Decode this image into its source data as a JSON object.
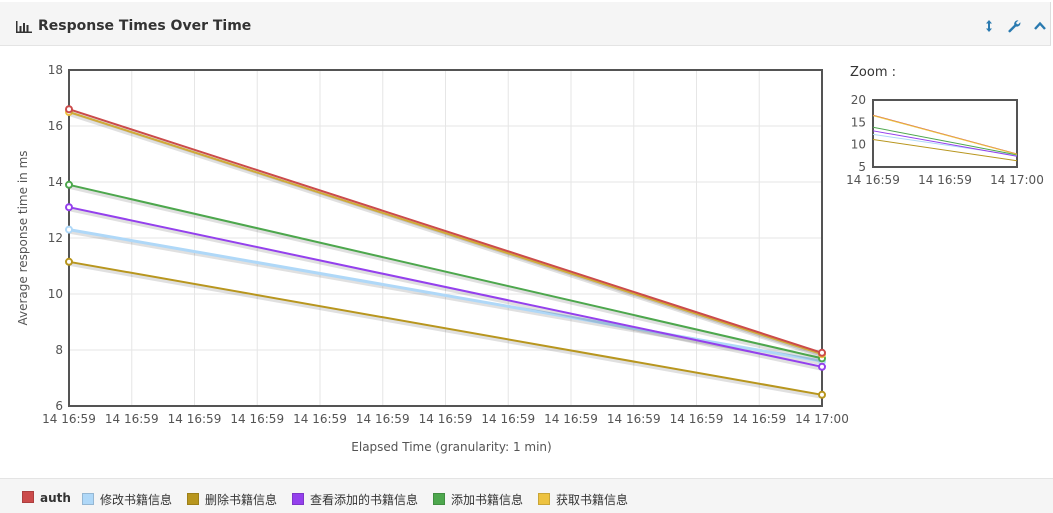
{
  "panel": {
    "title": "Response Times Over Time",
    "icons": [
      "bar-chart-icon",
      "resize-icon",
      "wrench-icon",
      "collapse-icon"
    ]
  },
  "zoom": {
    "title": "Zoom :"
  },
  "colors": {
    "auth": "#cb4b4b",
    "modify": "#afd8f8",
    "delete": "#b8961e",
    "view_added": "#9440ed",
    "add": "#4da74d",
    "get": "#edc240",
    "accent": "#2a7ab0"
  },
  "chart_data": [
    {
      "type": "line",
      "title": "",
      "xlabel": "Elapsed Time (granularity: 1 min)",
      "ylabel": "Average response time in ms",
      "x_ticks": [
        "14 16:59",
        "14 16:59",
        "14 16:59",
        "14 16:59",
        "14 16:59",
        "14 16:59",
        "14 16:59",
        "14 16:59",
        "14 16:59",
        "14 16:59",
        "14 16:59",
        "14 16:59",
        "14 17:00"
      ],
      "y_ticks": [
        "6",
        "8",
        "10",
        "12",
        "14",
        "16",
        "18"
      ],
      "ylim": [
        6,
        18
      ],
      "x": [
        "14 16:59",
        "14 17:00"
      ],
      "grid": true,
      "legend_position": "bottom",
      "series": [
        {
          "name": "auth",
          "color": "#cb4b4b",
          "values": [
            16.6,
            7.9
          ]
        },
        {
          "name": "修改书籍信息",
          "color": "#afd8f8",
          "values": [
            12.3,
            7.6
          ]
        },
        {
          "name": "删除书籍信息",
          "color": "#b8961e",
          "values": [
            11.15,
            6.4
          ]
        },
        {
          "name": "查看添加的书籍信息",
          "color": "#9440ed",
          "values": [
            13.1,
            7.4
          ]
        },
        {
          "name": "添加书籍信息",
          "color": "#4da74d",
          "values": [
            13.9,
            7.7
          ]
        },
        {
          "name": "获取书籍信息",
          "color": "#edc240",
          "values": [
            16.5,
            7.85
          ]
        }
      ]
    },
    {
      "type": "line",
      "title": "",
      "x_ticks": [
        "14 16:59",
        "14 16:59",
        "14 17:00"
      ],
      "y_ticks": [
        "5",
        "10",
        "15",
        "20"
      ],
      "ylim": [
        5,
        20
      ],
      "x": [
        "14 16:59",
        "14 17:00"
      ],
      "grid": false,
      "series": [
        {
          "color": "#cb4b4b",
          "values": [
            16.6,
            7.9
          ]
        },
        {
          "color": "#afd8f8",
          "values": [
            12.3,
            7.6
          ]
        },
        {
          "color": "#b8961e",
          "values": [
            11.15,
            6.4
          ]
        },
        {
          "color": "#9440ed",
          "values": [
            13.1,
            7.4
          ]
        },
        {
          "color": "#4da74d",
          "values": [
            13.9,
            7.7
          ]
        },
        {
          "color": "#edc240",
          "values": [
            16.5,
            7.85
          ]
        }
      ]
    }
  ]
}
